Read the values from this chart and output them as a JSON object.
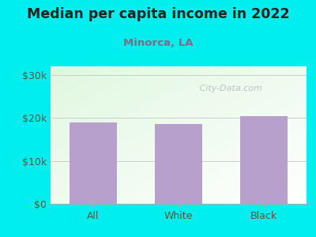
{
  "title": "Median per capita income in 2022",
  "subtitle": "Minorca, LA",
  "categories": [
    "All",
    "White",
    "Black"
  ],
  "values": [
    19000,
    18500,
    20500
  ],
  "bar_color": "#b8a0cc",
  "bg_color": "#00EEEE",
  "title_color": "#222222",
  "subtitle_color": "#886688",
  "axis_label_color": "#555544",
  "yticks": [
    0,
    10000,
    20000,
    30000
  ],
  "ytick_labels": [
    "$0",
    "$10k",
    "$20k",
    "$30k"
  ],
  "ylim": [
    0,
    32000
  ],
  "watermark": " City-Data.com"
}
